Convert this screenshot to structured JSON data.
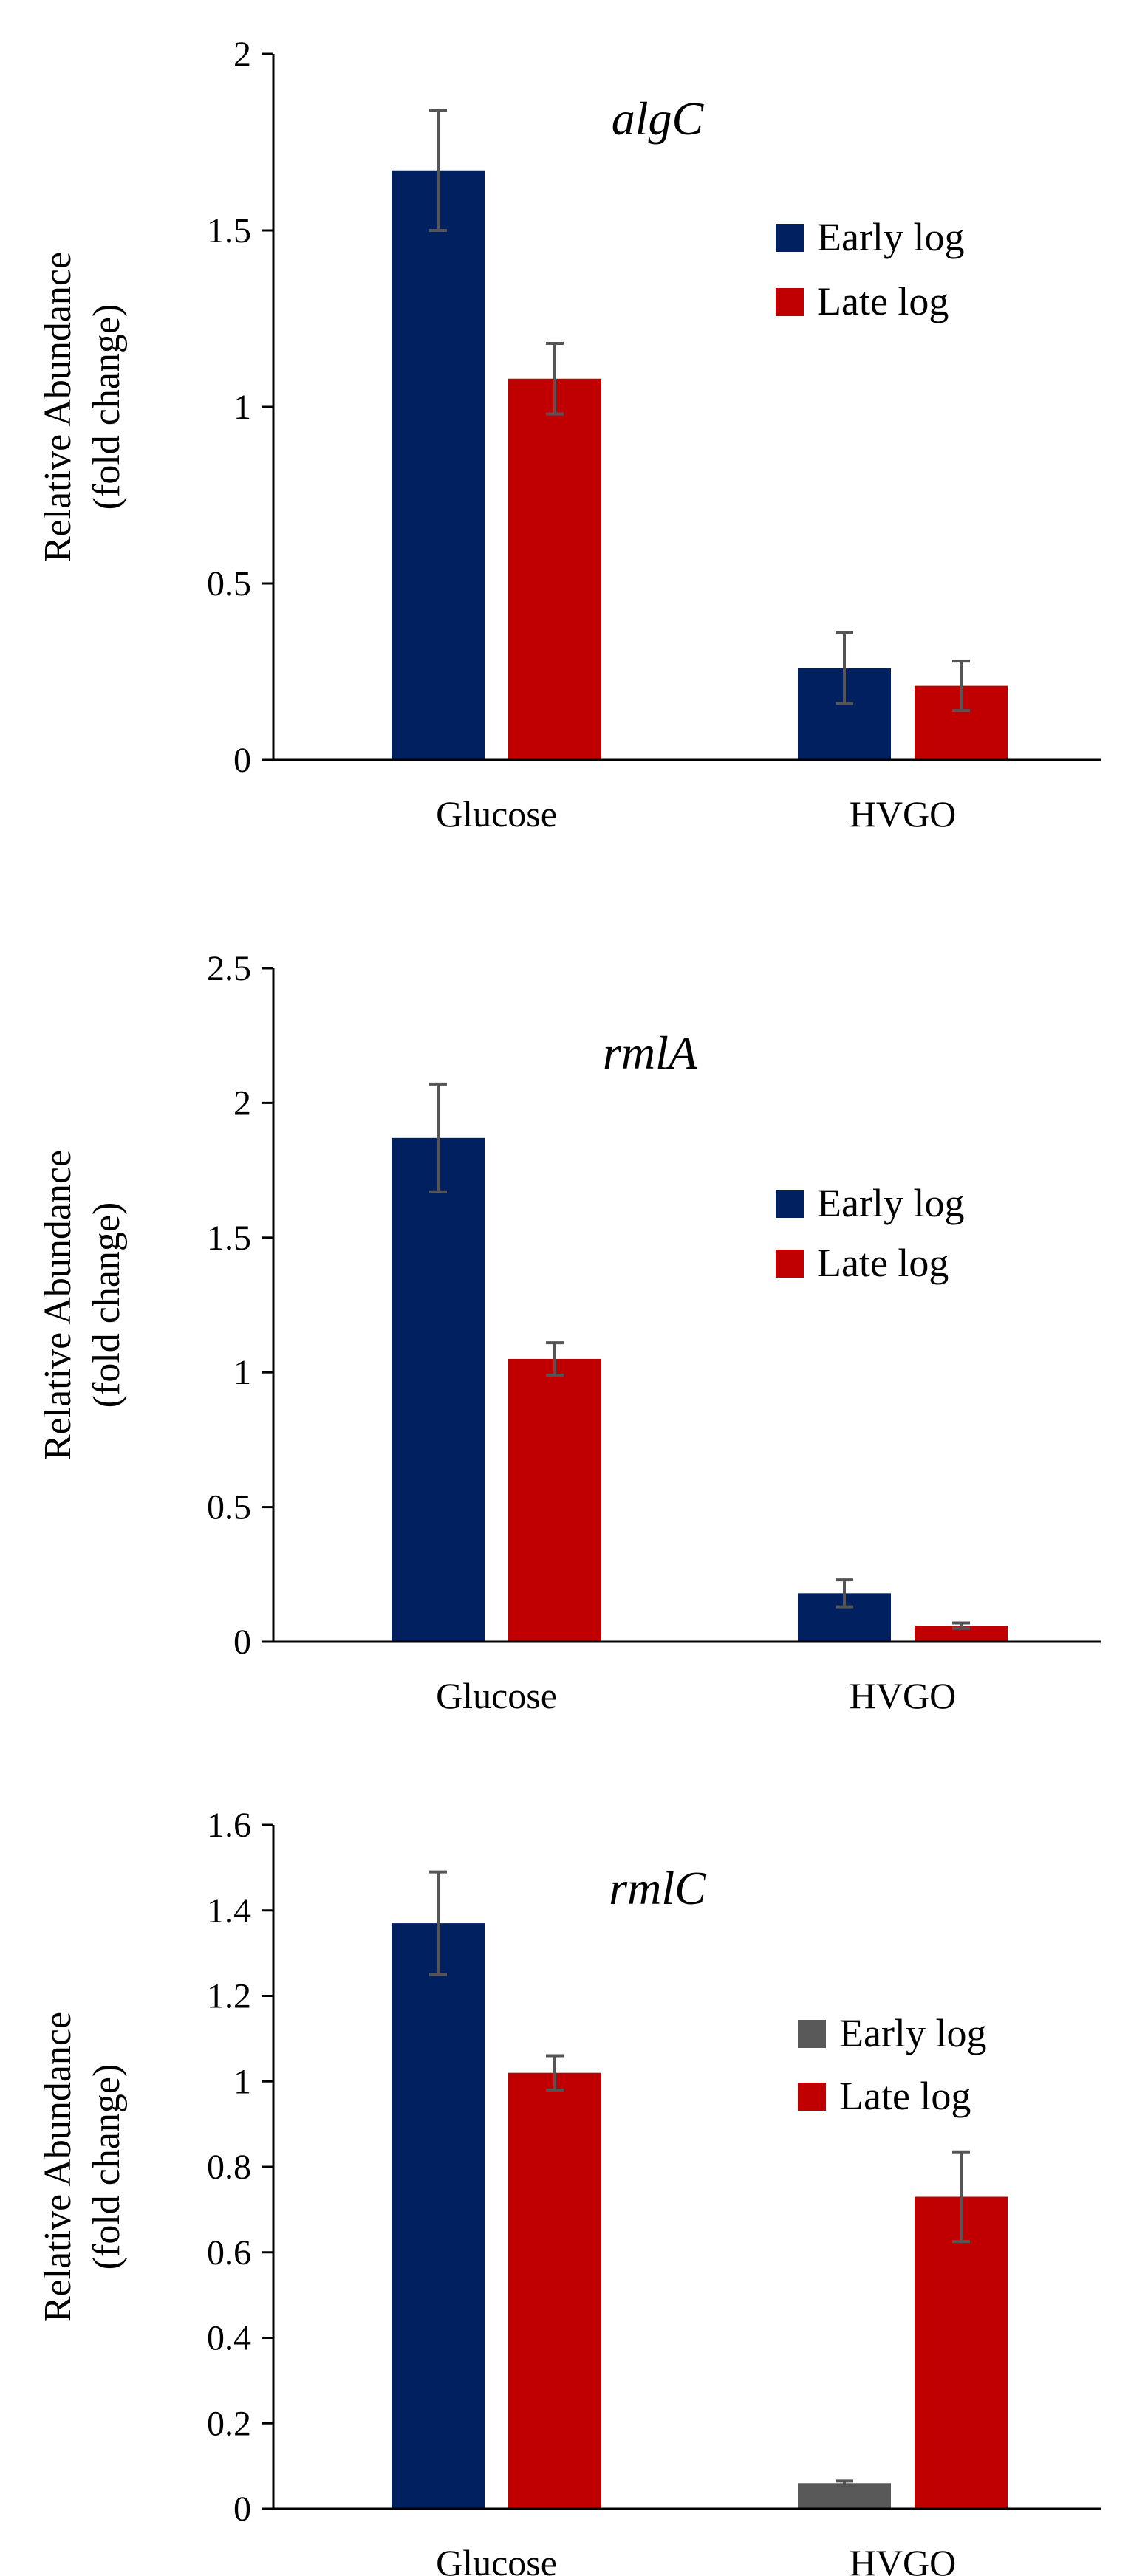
{
  "chart_data": [
    {
      "type": "bar",
      "title": "algC",
      "ylabel": [
        "Relative Abundance",
        "(fold change)"
      ],
      "xlabel": "",
      "categories": [
        "Glucose",
        "HVGO"
      ],
      "ylim": [
        0,
        2
      ],
      "yticks": [
        "0",
        "0.5",
        "1",
        "1.5",
        "2"
      ],
      "legend_position": "right",
      "series": [
        {
          "name": "Early log",
          "color": "#002060",
          "values": [
            1.67,
            0.26
          ],
          "errors": [
            0.17,
            0.1
          ]
        },
        {
          "name": "Late log",
          "color": "#C00000",
          "values": [
            1.08,
            0.21
          ],
          "errors": [
            0.1,
            0.07
          ]
        }
      ]
    },
    {
      "type": "bar",
      "title": "rmlA",
      "ylabel": [
        "Relative Abundance",
        "(fold change)"
      ],
      "xlabel": "",
      "categories": [
        "Glucose",
        "HVGO"
      ],
      "ylim": [
        0,
        2.5
      ],
      "yticks": [
        "0",
        "0.5",
        "1",
        "1.5",
        "2",
        "2.5"
      ],
      "legend_position": "right",
      "series": [
        {
          "name": "Early log",
          "color": "#002060",
          "values": [
            1.87,
            0.18
          ],
          "errors": [
            0.2,
            0.05
          ]
        },
        {
          "name": "Late log",
          "color": "#C00000",
          "values": [
            1.05,
            0.06
          ],
          "errors": [
            0.06,
            0.01
          ]
        }
      ]
    },
    {
      "type": "bar",
      "title": "rmlC",
      "ylabel": [
        "Relative Abundance",
        "(fold change)"
      ],
      "xlabel": "",
      "categories": [
        "Glucose",
        "HVGO"
      ],
      "ylim": [
        0,
        1.6
      ],
      "yticks": [
        "0",
        "0.2",
        "0.4",
        "0.6",
        "0.8",
        "1",
        "1.2",
        "1.4",
        "1.6"
      ],
      "legend_position": "right",
      "legend_colors": [
        "#595959",
        "#C00000"
      ],
      "series": [
        {
          "name": "Early log",
          "color": "#002060",
          "colors": [
            "#002060",
            "#595959"
          ],
          "values": [
            1.37,
            0.06
          ],
          "errors": [
            0.12,
            0.005
          ]
        },
        {
          "name": "Late log",
          "color": "#C00000",
          "values": [
            1.02,
            0.73
          ],
          "errors": [
            0.04,
            0.105
          ]
        }
      ]
    }
  ]
}
